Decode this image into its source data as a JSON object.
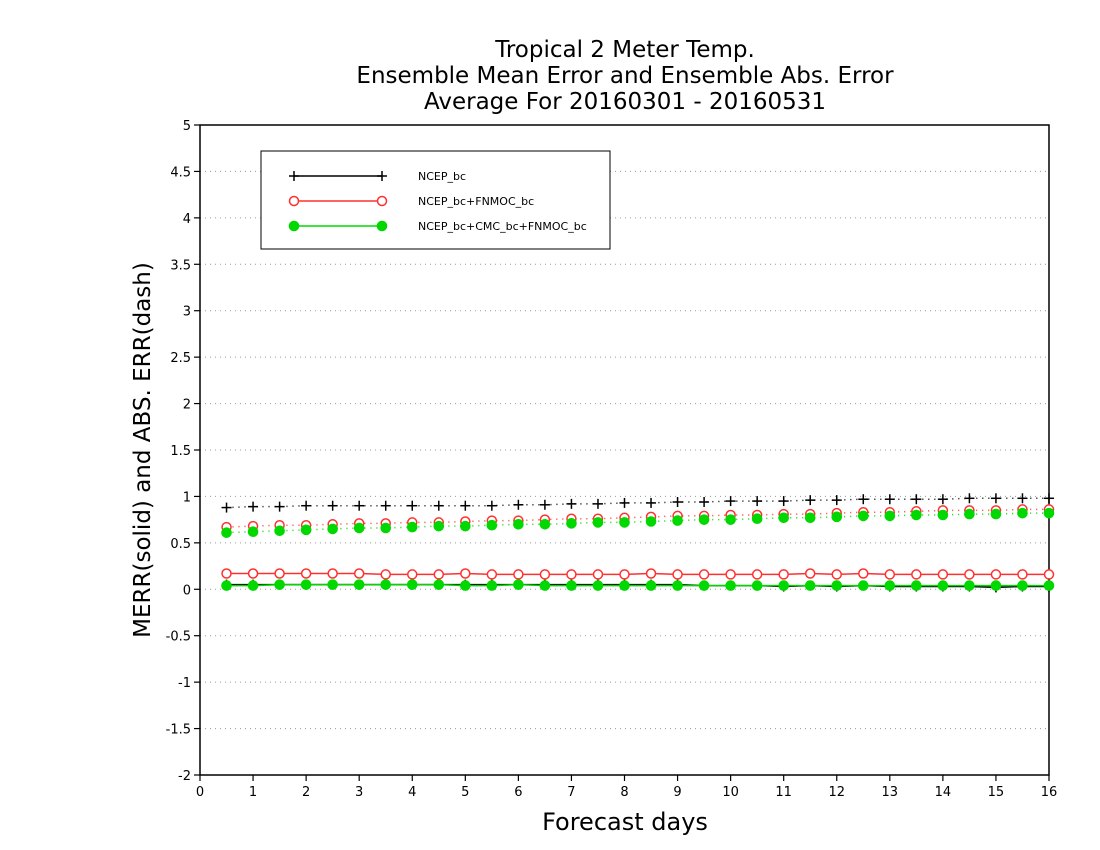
{
  "chart_data": {
    "type": "line",
    "title_lines": [
      "Tropical 2 Meter Temp.",
      "Ensemble Mean Error and Ensemble Abs. Error",
      "Average For 20160301 - 20160531"
    ],
    "xlabel": "Forecast days",
    "ylabel": "MERR(solid) and ABS. ERR(dash)",
    "xlim": [
      0,
      16
    ],
    "ylim": [
      -2,
      5
    ],
    "x_ticks": [
      "0",
      "1",
      "2",
      "3",
      "4",
      "5",
      "6",
      "7",
      "8",
      "9",
      "10",
      "11",
      "12",
      "13",
      "14",
      "15",
      "16"
    ],
    "y_ticks": [
      "-2",
      "-1.5",
      "-1",
      "-0.5",
      "0",
      "0.5",
      "1",
      "1.5",
      "2",
      "2.5",
      "3",
      "3.5",
      "4",
      "4.5",
      "5"
    ],
    "grid": "horizontal dotted",
    "legend_position": "top-left",
    "x": [
      0.5,
      1,
      1.5,
      2,
      2.5,
      3,
      3.5,
      4,
      4.5,
      5,
      5.5,
      6,
      6.5,
      7,
      7.5,
      8,
      8.5,
      9,
      9.5,
      10,
      10.5,
      11,
      11.5,
      12,
      12.5,
      13,
      13.5,
      14,
      14.5,
      15,
      15.5,
      16
    ],
    "series": [
      {
        "name": "NCEP_bc",
        "color": "#000000",
        "marker": "plus",
        "merr": [
          0.05,
          0.05,
          0.05,
          0.05,
          0.05,
          0.05,
          0.05,
          0.05,
          0.05,
          0.05,
          0.05,
          0.05,
          0.05,
          0.05,
          0.05,
          0.05,
          0.05,
          0.05,
          0.04,
          0.04,
          0.04,
          0.03,
          0.04,
          0.03,
          0.04,
          0.03,
          0.03,
          0.03,
          0.03,
          0.02,
          0.03,
          0.03
        ],
        "abs_err": [
          0.88,
          0.89,
          0.89,
          0.9,
          0.9,
          0.9,
          0.9,
          0.9,
          0.9,
          0.9,
          0.9,
          0.91,
          0.91,
          0.92,
          0.92,
          0.93,
          0.93,
          0.94,
          0.94,
          0.95,
          0.95,
          0.95,
          0.96,
          0.96,
          0.97,
          0.97,
          0.97,
          0.97,
          0.98,
          0.98,
          0.98,
          0.98
        ]
      },
      {
        "name": "NCEP_bc+FNMOC_bc",
        "color": "#ff3030",
        "marker": "open-circle",
        "merr": [
          0.17,
          0.17,
          0.17,
          0.17,
          0.17,
          0.17,
          0.16,
          0.16,
          0.16,
          0.17,
          0.16,
          0.16,
          0.16,
          0.16,
          0.16,
          0.16,
          0.17,
          0.16,
          0.16,
          0.16,
          0.16,
          0.16,
          0.17,
          0.16,
          0.17,
          0.16,
          0.16,
          0.16,
          0.16,
          0.16,
          0.16,
          0.16
        ],
        "abs_err": [
          0.67,
          0.68,
          0.69,
          0.69,
          0.7,
          0.71,
          0.71,
          0.72,
          0.72,
          0.73,
          0.74,
          0.74,
          0.75,
          0.76,
          0.76,
          0.77,
          0.78,
          0.79,
          0.79,
          0.8,
          0.8,
          0.81,
          0.81,
          0.82,
          0.83,
          0.83,
          0.84,
          0.85,
          0.85,
          0.85,
          0.86,
          0.86
        ]
      },
      {
        "name": "NCEP_bc+CMC_bc+FNMOC_bc",
        "color": "#00d800",
        "marker": "filled-circle",
        "merr": [
          0.04,
          0.04,
          0.05,
          0.05,
          0.05,
          0.05,
          0.05,
          0.05,
          0.05,
          0.04,
          0.04,
          0.05,
          0.04,
          0.04,
          0.04,
          0.04,
          0.04,
          0.04,
          0.04,
          0.04,
          0.04,
          0.04,
          0.04,
          0.04,
          0.04,
          0.04,
          0.04,
          0.04,
          0.04,
          0.04,
          0.04,
          0.04
        ],
        "abs_err": [
          0.61,
          0.62,
          0.63,
          0.64,
          0.65,
          0.66,
          0.66,
          0.67,
          0.68,
          0.68,
          0.69,
          0.7,
          0.7,
          0.71,
          0.72,
          0.72,
          0.73,
          0.74,
          0.75,
          0.75,
          0.76,
          0.77,
          0.77,
          0.78,
          0.79,
          0.79,
          0.8,
          0.8,
          0.81,
          0.81,
          0.82,
          0.82
        ]
      }
    ]
  }
}
